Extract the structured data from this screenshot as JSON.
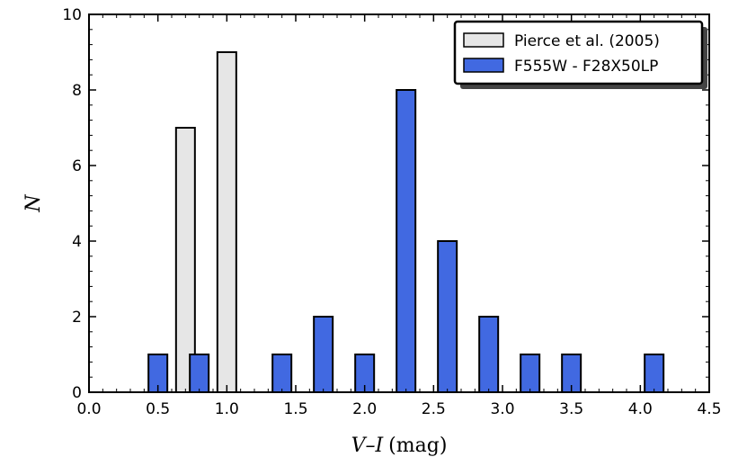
{
  "chart_data": {
    "type": "bar",
    "xlabel_var": "V–I",
    "xlabel_unit": "(mag)",
    "ylabel": "N",
    "xlim": [
      0.0,
      4.5
    ],
    "ylim": [
      0,
      10
    ],
    "x_ticks": [
      "0.0",
      "0.5",
      "1.0",
      "1.5",
      "2.0",
      "2.5",
      "3.0",
      "3.5",
      "4.0",
      "4.5"
    ],
    "y_ticks": [
      "0",
      "2",
      "4",
      "6",
      "8",
      "10"
    ],
    "grid": false,
    "legend_position": "top-right",
    "series": [
      {
        "name": "Pierce et al. (2005)",
        "color": "#e6e6e6",
        "x": [
          0.7,
          1.0
        ],
        "values": [
          7,
          9
        ]
      },
      {
        "name": "F555W - F28X50LP",
        "color": "#4169e1",
        "x": [
          0.5,
          0.8,
          1.4,
          1.7,
          2.0,
          2.3,
          2.6,
          2.9,
          3.2,
          3.5,
          4.1
        ],
        "values": [
          1,
          1,
          1,
          2,
          1,
          8,
          4,
          2,
          1,
          1,
          1
        ]
      }
    ]
  }
}
